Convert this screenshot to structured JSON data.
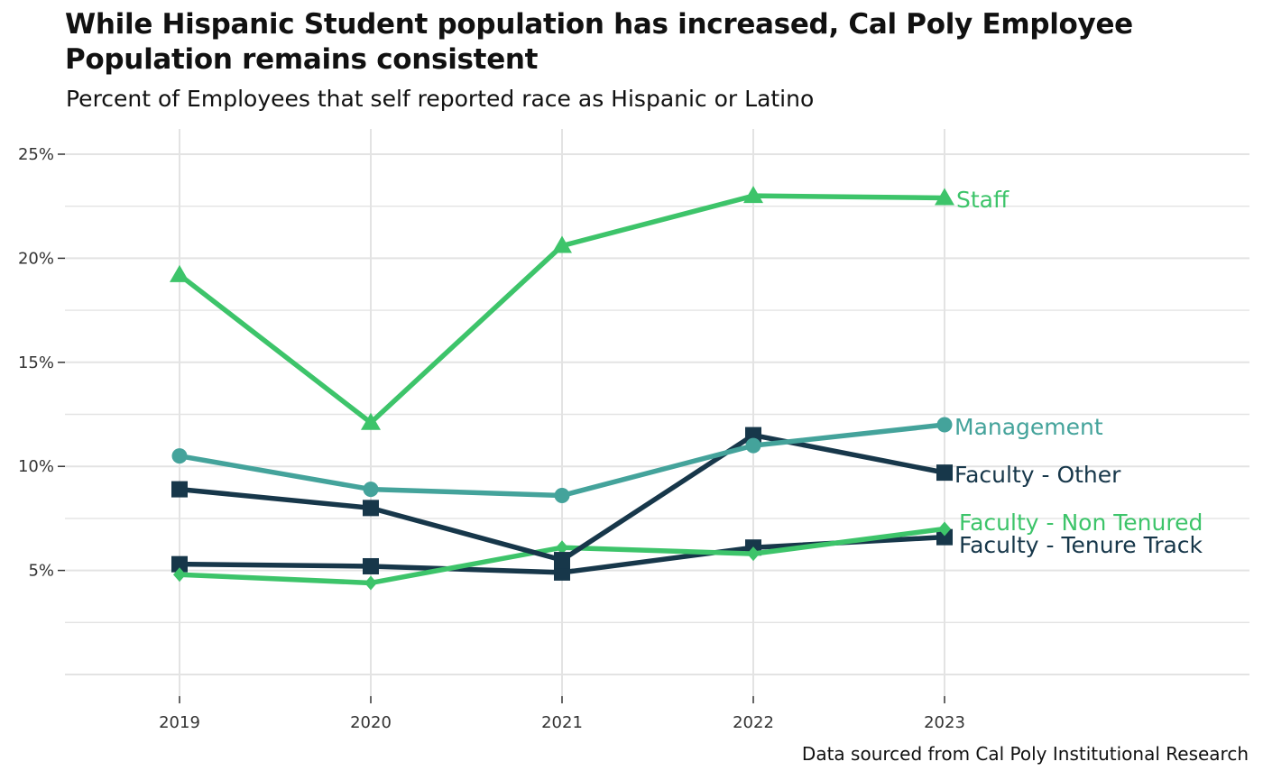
{
  "chart_data": {
    "type": "line",
    "title": "While Hispanic Student population has increased, Cal Poly Employee Population remains consistent",
    "subtitle": "Percent of Employees that self reported race as Hispanic or Latino",
    "caption": "Data sourced from Cal Poly Institutional Research",
    "xlabel": "",
    "ylabel": "",
    "x": [
      "2019",
      "2020",
      "2021",
      "2022",
      "2023"
    ],
    "ylim": [
      0,
      26
    ],
    "yticks": [
      5,
      10,
      15,
      20,
      25
    ],
    "ytick_labels": [
      "5%",
      "10%",
      "15%",
      "20%",
      "25%"
    ],
    "grid": true,
    "legend": "direct labels at right end of lines",
    "series": [
      {
        "name": "Staff",
        "label": "Staff",
        "color": "#3DC46A",
        "marker": "triangle",
        "values": [
          19.2,
          12.1,
          20.6,
          23.0,
          22.9
        ]
      },
      {
        "name": "Management",
        "label": "Management",
        "color": "#44A39B",
        "marker": "circle",
        "values": [
          10.5,
          8.9,
          8.6,
          11.0,
          12.0
        ]
      },
      {
        "name": "Faculty - Other",
        "label": "Faculty - Other",
        "color": "#17374A",
        "marker": "square",
        "values": [
          8.9,
          8.0,
          5.5,
          11.5,
          9.7
        ]
      },
      {
        "name": "Faculty - Non Tenured",
        "label": "Faculty - Non Tenured",
        "color": "#3DC46A",
        "marker": "diamond",
        "values": [
          4.8,
          4.4,
          6.1,
          5.8,
          7.0
        ]
      },
      {
        "name": "Faculty - Tenure Track",
        "label": "Faculty - Tenure Track",
        "color": "#17374A",
        "marker": "square",
        "values": [
          5.3,
          5.2,
          4.9,
          6.1,
          6.6
        ]
      }
    ]
  }
}
